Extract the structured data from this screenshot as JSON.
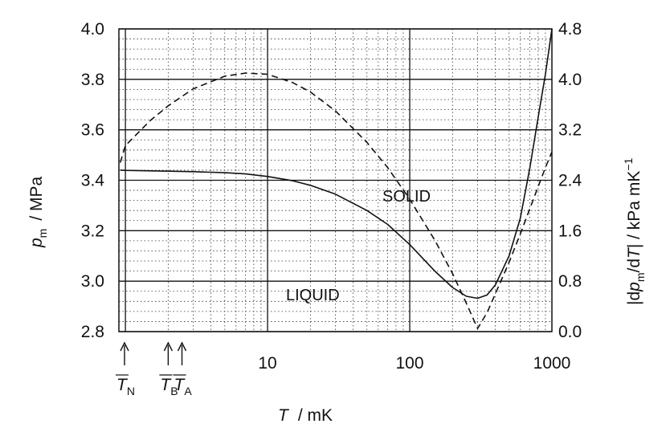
{
  "chart_data": {
    "type": "line",
    "x_scale": "log",
    "xlim": [
      0.9,
      1000
    ],
    "ylim_left": [
      2.8,
      4.0
    ],
    "ylim_right": [
      0.0,
      4.8
    ],
    "x_tick_labels": [
      "10",
      "100",
      "1000"
    ],
    "x_tick_values": [
      10,
      100,
      1000
    ],
    "y_left_ticks": [
      "2.8",
      "3.0",
      "3.2",
      "3.4",
      "3.6",
      "3.8",
      "4.0"
    ],
    "y_right_ticks": [
      "0.0",
      "0.8",
      "1.6",
      "2.4",
      "3.2",
      "4.0",
      "4.8"
    ],
    "grid": true,
    "xlabel": {
      "sym": "T",
      "unit": "/  mK"
    },
    "ylabel_left": {
      "sym": "p",
      "sub": "m",
      "unit": "/  MPa"
    },
    "ylabel_right": {
      "open": "|d",
      "sym": "p",
      "sub": "m",
      "mid": "/d",
      "sym2": "T",
      "close": "|  /  kPa  mK",
      "sup": "−1"
    },
    "regions": [
      "SOLID",
      "LIQUID"
    ],
    "markers": [
      {
        "label": "T",
        "sub": "N",
        "x": 0.92
      },
      {
        "label": "T",
        "sub": "B",
        "x": 2.0
      },
      {
        "label": "T",
        "sub": "A",
        "x": 2.5
      }
    ],
    "series": [
      {
        "axis": "left",
        "style": "solid",
        "x": [
          0.92,
          1,
          2,
          3,
          5,
          7,
          10,
          15,
          20,
          30,
          50,
          70,
          100,
          150,
          200,
          250,
          300,
          350,
          400,
          500,
          600,
          700,
          800,
          900,
          1000
        ],
        "y": [
          3.44,
          3.439,
          3.436,
          3.434,
          3.43,
          3.425,
          3.415,
          3.398,
          3.38,
          3.345,
          3.28,
          3.225,
          3.145,
          3.04,
          2.975,
          2.94,
          2.932,
          2.945,
          2.985,
          3.1,
          3.25,
          3.45,
          3.65,
          3.82,
          4.0
        ]
      },
      {
        "axis": "right",
        "style": "dashed",
        "x": [
          0.92,
          1,
          1.5,
          2,
          3,
          5,
          7,
          10,
          15,
          20,
          30,
          50,
          70,
          100,
          150,
          200,
          250,
          300,
          350,
          400,
          500,
          600,
          700,
          800,
          900,
          1000
        ],
        "y": [
          2.68,
          2.95,
          3.35,
          3.58,
          3.85,
          4.05,
          4.1,
          4.08,
          3.95,
          3.8,
          3.5,
          3.0,
          2.6,
          2.1,
          1.45,
          0.92,
          0.45,
          0.05,
          0.3,
          0.6,
          1.1,
          1.55,
          1.95,
          2.3,
          2.6,
          2.85
        ]
      }
    ]
  }
}
